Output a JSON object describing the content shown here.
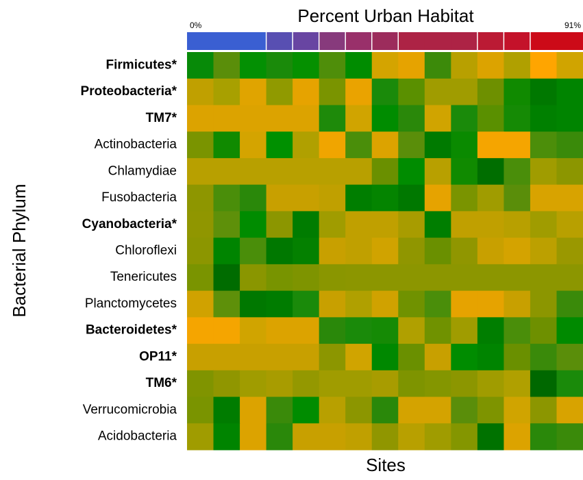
{
  "chart_data": {
    "type": "heatmap",
    "title": "Percent Urban Habitat",
    "color_bar_labels": [
      "0%",
      "91%"
    ],
    "x_label": "Sites",
    "y_label": "Bacterial Phylum",
    "rows": [
      "Firmicutes*",
      "Proteobacteria*",
      "TM7*",
      "Actinobacteria",
      "Chlamydiae",
      "Fusobacteria",
      "Cyanobacteria*",
      "Chloroflexi",
      "Tenericutes",
      "Planctomycetes",
      "Bacteroidetes*",
      "OP11*",
      "TM6*",
      "Verrucomicrobia",
      "Acidobacteria"
    ],
    "urban_colors": [
      "#3a5fd2",
      "#3a5fd2",
      "#3a5fd2",
      "#584fb2",
      "#6845a2",
      "#873a7c",
      "#99306a",
      "#9c2c5c",
      "#ad2345",
      "#ad2345",
      "#ad2345",
      "#bb1a34",
      "#c4122a",
      "#cc0a18",
      "#cc0a18"
    ],
    "cell_colors": [
      [
        "#078a08",
        "#5a8e0a",
        "#039003",
        "#1a8a0a",
        "#059000",
        "#4f8e0a",
        "#008c00",
        "#d4a400",
        "#e6a300",
        "#3c8a0a",
        "#b8a000",
        "#dca300",
        "#b0a000",
        "#ffa500",
        "#d0a400"
      ],
      [
        "#c0a000",
        "#a8a000",
        "#e0a400",
        "#909a00",
        "#e6a300",
        "#7a9400",
        "#eaa300",
        "#1a8a0a",
        "#5a9000",
        "#a09c00",
        "#a09c00",
        "#6e9000",
        "#108a00",
        "#007800",
        "#008400"
      ],
      [
        "#dca300",
        "#dca300",
        "#dca300",
        "#dca300",
        "#dca300",
        "#1e8a0a",
        "#d0a400",
        "#008c00",
        "#2a880a",
        "#d0a400",
        "#1a8a0a",
        "#5a9000",
        "#158a05",
        "#008000",
        "#008400"
      ],
      [
        "#7a9400",
        "#108a00",
        "#d4a400",
        "#009000",
        "#b0a000",
        "#f0a500",
        "#4a8e0a",
        "#dca300",
        "#5a8e0a",
        "#007a00",
        "#0a8a00",
        "#f5a500",
        "#f5a500",
        "#4c8e0a",
        "#3a8a0a"
      ],
      [
        "#b8a000",
        "#b8a000",
        "#b8a000",
        "#b8a000",
        "#b8a000",
        "#b8a000",
        "#b8a000",
        "#6a9000",
        "#008c00",
        "#b8a000",
        "#108a00",
        "#006e00",
        "#4a8e0a",
        "#a09c00",
        "#8c9600"
      ],
      [
        "#8e9600",
        "#4a8e0a",
        "#2a880a",
        "#c8a000",
        "#c8a000",
        "#c0a000",
        "#007e00",
        "#048400",
        "#007800",
        "#e6a300",
        "#7a9400",
        "#a09c00",
        "#5a8e0a",
        "#d8a300",
        "#d8a300"
      ],
      [
        "#909600",
        "#5e900a",
        "#008c00",
        "#8c9600",
        "#007c00",
        "#a09c00",
        "#c0a000",
        "#c0a000",
        "#a89c00",
        "#007e00",
        "#c0a000",
        "#c0a000",
        "#b8a000",
        "#a09c00",
        "#b8a000"
      ],
      [
        "#8c9600",
        "#008400",
        "#4a8e0a",
        "#007800",
        "#048000",
        "#c8a000",
        "#c0a000",
        "#d0a300",
        "#909600",
        "#6a9000",
        "#909600",
        "#c8a000",
        "#d4a300",
        "#bca000",
        "#9a9800"
      ],
      [
        "#7a9400",
        "#006c00",
        "#8a9600",
        "#789400",
        "#7e9400",
        "#8a9600",
        "#8c9600",
        "#8c9600",
        "#8c9600",
        "#8c9600",
        "#8c9600",
        "#8c9600",
        "#8c9600",
        "#8c9600",
        "#8c9600"
      ],
      [
        "#d0a200",
        "#5e900a",
        "#007800",
        "#007c00",
        "#1a8a0a",
        "#c8a000",
        "#b0a000",
        "#d0a200",
        "#709200",
        "#4a8e0a",
        "#e6a300",
        "#e6a300",
        "#c8a000",
        "#8c9600",
        "#3a8a0a"
      ],
      [
        "#f5a500",
        "#f5a500",
        "#d0a400",
        "#dca300",
        "#dca300",
        "#2a880a",
        "#1a8a0a",
        "#158a05",
        "#b0a000",
        "#709200",
        "#a09c00",
        "#007e00",
        "#4a8e0a",
        "#6e9000",
        "#008a00"
      ],
      [
        "#c8a000",
        "#c8a000",
        "#c8a000",
        "#c8a000",
        "#c8a000",
        "#8c9600",
        "#d0a400",
        "#008800",
        "#6a9000",
        "#c8a000",
        "#008c00",
        "#008400",
        "#6a9000",
        "#3a8a0a",
        "#5a8e0a"
      ],
      [
        "#809400",
        "#909600",
        "#a09c00",
        "#a89c00",
        "#949800",
        "#a09c00",
        "#a09c00",
        "#a89c00",
        "#7e9400",
        "#849600",
        "#8c9600",
        "#a09c00",
        "#b0a000",
        "#006800",
        "#1a8a0a"
      ],
      [
        "#7a9400",
        "#007c00",
        "#dca300",
        "#3a8a0a",
        "#008c00",
        "#b8a000",
        "#8c9600",
        "#2a880a",
        "#d4a300",
        "#d4a300",
        "#5a8e0a",
        "#7e9400",
        "#d0a400",
        "#8c9600",
        "#d8a300"
      ],
      [
        "#a09c00",
        "#008400",
        "#dca300",
        "#2a880a",
        "#c8a000",
        "#c8a000",
        "#c0a000",
        "#909600",
        "#b8a000",
        "#a09c00",
        "#849600",
        "#007200",
        "#dca300",
        "#2a880a",
        "#3a8a0a"
      ]
    ]
  }
}
